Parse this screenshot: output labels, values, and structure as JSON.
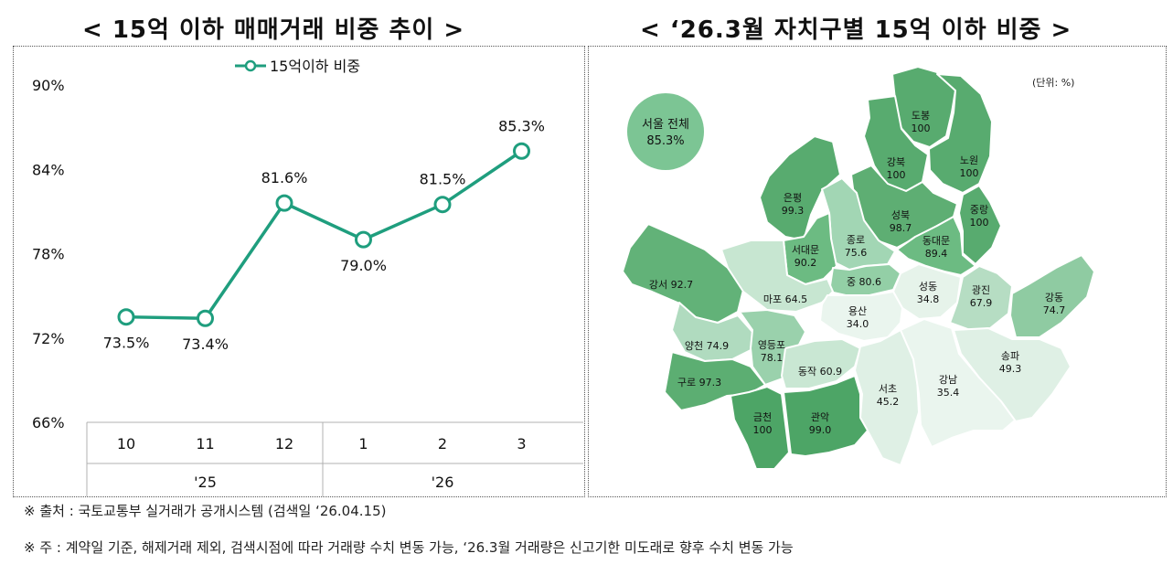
{
  "left_title": "< 15억 이하 매매거래 비중 추이 >",
  "right_title": "< ‘26.3월 자치구별 15억 이하 비중 >",
  "chart_data": [
    {
      "type": "line",
      "title": "15억 이하 매매거래 비중 추이",
      "legend": "15억이하 비중",
      "legend_position": "top",
      "x": [
        "10",
        "11",
        "12",
        "1",
        "2",
        "3"
      ],
      "year_labels": [
        {
          "label": "'25",
          "categories": [
            "10",
            "11",
            "12"
          ]
        },
        {
          "label": "'26",
          "categories": [
            "1",
            "2",
            "3"
          ]
        }
      ],
      "series": [
        {
          "name": "15억이하 비중",
          "values": [
            73.5,
            73.4,
            81.6,
            79.0,
            81.5,
            85.3
          ],
          "labels": [
            "73.5%",
            "73.4%",
            "81.6%",
            "79.0%",
            "81.5%",
            "85.3%"
          ]
        }
      ],
      "yticks": [
        66,
        72,
        78,
        84,
        90
      ],
      "ytick_labels": [
        "66%",
        "72%",
        "78%",
        "84%",
        "90%"
      ],
      "ylim": [
        66,
        90
      ],
      "grid": false,
      "color": "#1f9e7e"
    },
    {
      "type": "map",
      "title": "‘26.3월 자치구별 15억 이하 비중",
      "unit_label": "(단위: %)",
      "overall": {
        "name": "서울 전체",
        "value": "85.3%"
      },
      "districts": [
        {
          "name": "도봉",
          "value": "100"
        },
        {
          "name": "강북",
          "value": "100"
        },
        {
          "name": "노원",
          "value": "100"
        },
        {
          "name": "은평",
          "value": "99.3"
        },
        {
          "name": "성북",
          "value": "98.7"
        },
        {
          "name": "중랑",
          "value": "100"
        },
        {
          "name": "종로",
          "value": "75.6"
        },
        {
          "name": "서대문",
          "value": "90.2"
        },
        {
          "name": "동대문",
          "value": "89.4"
        },
        {
          "name": "중",
          "value": "80.6"
        },
        {
          "name": "강서",
          "value": "92.7"
        },
        {
          "name": "마포",
          "value": "64.5"
        },
        {
          "name": "성동",
          "value": "34.8"
        },
        {
          "name": "광진",
          "value": "67.9"
        },
        {
          "name": "용산",
          "value": "34.0"
        },
        {
          "name": "강동",
          "value": "74.7"
        },
        {
          "name": "양천",
          "value": "74.9"
        },
        {
          "name": "영등포",
          "value": "78.1"
        },
        {
          "name": "동작",
          "value": "60.9"
        },
        {
          "name": "구로",
          "value": "97.3"
        },
        {
          "name": "서초",
          "value": "45.2"
        },
        {
          "name": "강남",
          "value": "35.4"
        },
        {
          "name": "송파",
          "value": "49.3"
        },
        {
          "name": "금천",
          "value": "100"
        },
        {
          "name": "관악",
          "value": "99.0"
        }
      ]
    }
  ],
  "notes": [
    "※ 출처 : 국토교통부 실거래가 공개시스템 (검색일 ‘26.04.15)",
    "※ 주 : 계약일 기준, 해제거래 제외, 검색시점에 따라 거래량 수치 변동 가능, ‘26.3월 거래량은 신고기한 미도래로 향후 수치 변동 가능"
  ]
}
